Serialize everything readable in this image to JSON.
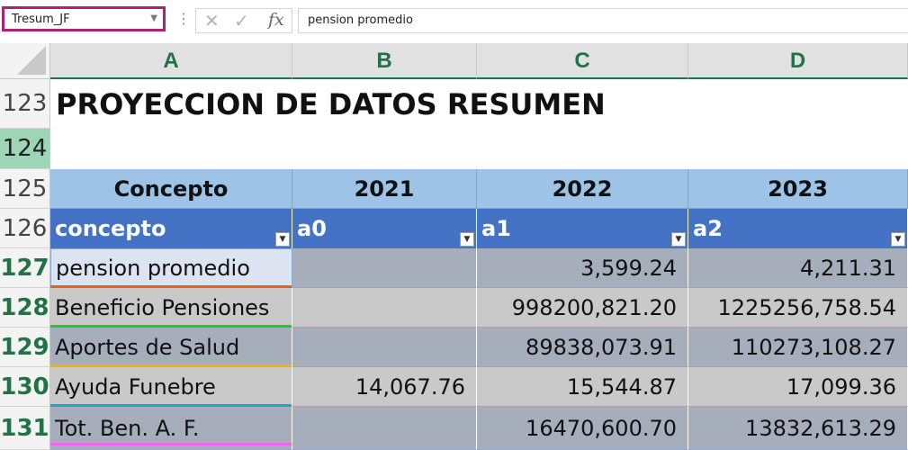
{
  "formula_bar": {
    "name_box": "Tresum_JF",
    "formula": "pension promedio",
    "cancel_glyph": "✕",
    "enter_glyph": "✓",
    "fx_glyph": "fx"
  },
  "columns": [
    "A",
    "B",
    "C",
    "D"
  ],
  "rows": [
    "123",
    "124",
    "125",
    "126",
    "127",
    "128",
    "129",
    "130",
    "131"
  ],
  "sheet": {
    "title": "PROYECCION DE DATOS RESUMEN",
    "header_row": [
      "Concepto",
      "2021",
      "2022",
      "2023"
    ],
    "table_headers": [
      "concepto",
      "a0",
      "a1",
      "a2"
    ],
    "data_rows": [
      [
        "pension promedio",
        "",
        "3,599.24",
        "4,211.31"
      ],
      [
        "Beneficio Pensiones",
        "",
        "998200,821.20",
        "1225256,758.54"
      ],
      [
        "Aportes de Salud",
        "",
        "89838,073.91",
        "110273,108.27"
      ],
      [
        "Ayuda Funebre",
        "14,067.76",
        "15,544.87",
        "17,099.36"
      ],
      [
        "Tot. Ben. A. F.",
        "",
        "16470,600.70",
        "13832,613.29"
      ]
    ]
  },
  "colors": {
    "name_box_border": "#b0226e",
    "header_accent": "#217346",
    "table_header": "#4472c4",
    "header_band": "#9dc3e6",
    "underlines": [
      "#e8601c",
      "#22cc22",
      "#f0b400",
      "#1fa3c9",
      "#ee66ee"
    ]
  }
}
